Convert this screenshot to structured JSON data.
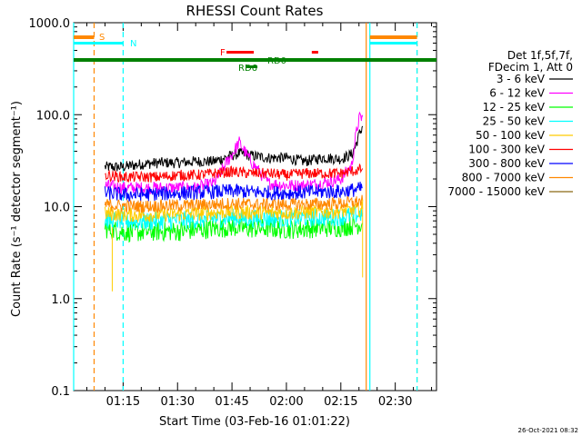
{
  "chart_data": {
    "type": "line",
    "title": "RHESSI Count Rates",
    "xlabel": "Start Time (03-Feb-16 01:01:22)",
    "ylabel": "Count Rate (s⁻¹ detector segment⁻¹)",
    "y_scale": "log",
    "ylim": [
      0.1,
      1000
    ],
    "xlim_minutes_clock": [
      "01:01:22",
      "02:41:22"
    ],
    "x_ticks": [
      "01:15",
      "01:30",
      "01:45",
      "02:00",
      "02:15",
      "02:30"
    ],
    "y_ticks": [
      "0.1",
      "1.0",
      "10.0",
      "100.0",
      "1000.0"
    ],
    "grid": false,
    "legend_header": [
      "Det 1f,5f,7f,",
      "FDecim 1, Att 0"
    ],
    "legend_position": "right",
    "series": [
      {
        "name": "3 - 6 keV",
        "color": "#000000",
        "t": [
          "01:10",
          "01:15",
          "01:20",
          "01:25",
          "01:30",
          "01:35",
          "01:40",
          "01:45",
          "01:47",
          "01:50",
          "01:55",
          "02:00",
          "02:05",
          "02:10",
          "02:15",
          "02:18",
          "02:19",
          "02:20",
          "02:21"
        ],
        "y": [
          27,
          27,
          29,
          30,
          30,
          31,
          31,
          36,
          38,
          36,
          34,
          34,
          31,
          34,
          33,
          37,
          45,
          60,
          75
        ]
      },
      {
        "name": "6 - 12 keV",
        "color": "#ff00ff",
        "t": [
          "01:10",
          "01:15",
          "01:20",
          "01:25",
          "01:30",
          "01:35",
          "01:40",
          "01:45",
          "01:47",
          "01:50",
          "01:55",
          "02:00",
          "02:05",
          "02:10",
          "02:15",
          "02:18",
          "02:19",
          "02:20",
          "02:21"
        ],
        "y": [
          17,
          16,
          16,
          16,
          16,
          16,
          18,
          37,
          50,
          32,
          18,
          17,
          17,
          18,
          20,
          28,
          55,
          90,
          95
        ]
      },
      {
        "name": "12 - 25 keV",
        "color": "#00ff00",
        "t": [
          "01:10",
          "01:15",
          "01:20",
          "01:25",
          "01:30",
          "01:35",
          "01:40",
          "01:45",
          "01:50",
          "01:55",
          "02:00",
          "02:05",
          "02:10",
          "02:15",
          "02:20",
          "02:21"
        ],
        "y": [
          5.8,
          5.3,
          5.3,
          5.4,
          5.4,
          5.6,
          5.8,
          6.0,
          5.8,
          5.8,
          5.7,
          5.8,
          5.9,
          6.0,
          6.4,
          6.6
        ]
      },
      {
        "name": "25 - 50 keV",
        "color": "#00ffff",
        "t": [
          "01:10",
          "01:15",
          "01:20",
          "01:25",
          "01:30",
          "01:35",
          "01:40",
          "01:45",
          "01:50",
          "01:55",
          "02:00",
          "02:05",
          "02:10",
          "02:15",
          "02:20",
          "02:21"
        ],
        "y": [
          7.2,
          7.0,
          6.9,
          7.0,
          7.1,
          7.2,
          7.4,
          7.6,
          7.4,
          7.4,
          7.4,
          7.5,
          7.6,
          7.7,
          8.2,
          8.5
        ]
      },
      {
        "name": "50 - 100 keV",
        "color": "#ffcc00",
        "t": [
          "01:10",
          "01:15",
          "01:20",
          "01:25",
          "01:30",
          "01:35",
          "01:40",
          "01:45",
          "01:50",
          "01:55",
          "02:00",
          "02:05",
          "02:10",
          "02:15",
          "02:20",
          "02:21"
        ],
        "y": [
          8.4,
          8.2,
          8.1,
          8.2,
          8.3,
          8.4,
          8.6,
          8.8,
          8.6,
          8.6,
          8.6,
          8.7,
          8.8,
          8.9,
          9.3,
          9.5
        ]
      },
      {
        "name": "100 - 300 keV",
        "color": "#ff0000",
        "t": [
          "01:10",
          "01:15",
          "01:20",
          "01:25",
          "01:30",
          "01:35",
          "01:40",
          "01:45",
          "01:50",
          "01:55",
          "02:00",
          "02:05",
          "02:10",
          "02:15",
          "02:20",
          "02:21"
        ],
        "y": [
          22,
          21,
          21,
          21,
          22,
          22,
          23,
          24,
          23,
          23,
          22,
          23,
          23,
          23,
          25,
          26
        ]
      },
      {
        "name": "300 - 800 keV",
        "color": "#0000ff",
        "t": [
          "01:10",
          "01:15",
          "01:20",
          "01:25",
          "01:30",
          "01:35",
          "01:40",
          "01:45",
          "01:50",
          "01:55",
          "02:00",
          "02:05",
          "02:10",
          "02:15",
          "02:20",
          "02:21"
        ],
        "y": [
          14,
          13.5,
          13.5,
          13.8,
          14,
          14.2,
          14.5,
          14.8,
          14.5,
          14.2,
          14,
          14.3,
          14.5,
          14.6,
          15.5,
          16
        ]
      },
      {
        "name": "800 - 7000 keV",
        "color": "#ff8800",
        "t": [
          "01:10",
          "01:15",
          "01:20",
          "01:25",
          "01:30",
          "01:35",
          "01:40",
          "01:45",
          "01:50",
          "01:55",
          "02:00",
          "02:05",
          "02:10",
          "02:15",
          "02:20",
          "02:21"
        ],
        "y": [
          10.5,
          10.2,
          10.1,
          10.2,
          10.3,
          10.4,
          10.6,
          10.8,
          10.6,
          10.5,
          10.5,
          10.6,
          10.7,
          10.8,
          11.3,
          11.5
        ]
      },
      {
        "name": "7000 - 15000 keV",
        "color": "#8b6914",
        "t": [],
        "y": []
      }
    ],
    "annotations": {
      "labels": [
        {
          "text": "S",
          "color": "#ff8800"
        },
        {
          "text": "N",
          "color": "#00ffff"
        },
        {
          "text": "F",
          "color": "#ff0000"
        },
        {
          "text": "RD0",
          "color": "#008000"
        },
        {
          "text": "RD6",
          "color": "#008000"
        }
      ],
      "vertical_lines": [
        {
          "t": "01:01:22",
          "color": "#00ffff",
          "style": "solid"
        },
        {
          "t": "01:07",
          "color": "#ff8800",
          "style": "dashed"
        },
        {
          "t": "01:15",
          "color": "#00ffff",
          "style": "dashed"
        },
        {
          "t": "02:22",
          "color": "#ff8800",
          "style": "solid"
        },
        {
          "t": "02:23",
          "color": "#00ffff",
          "style": "solid"
        },
        {
          "t": "02:36",
          "color": "#ff8800",
          "style": "dashed"
        },
        {
          "t": "02:36",
          "color": "#00ffff",
          "style": "dashed"
        }
      ]
    }
  },
  "footer": {
    "timestamp": "26-Oct-2021 08:32"
  }
}
